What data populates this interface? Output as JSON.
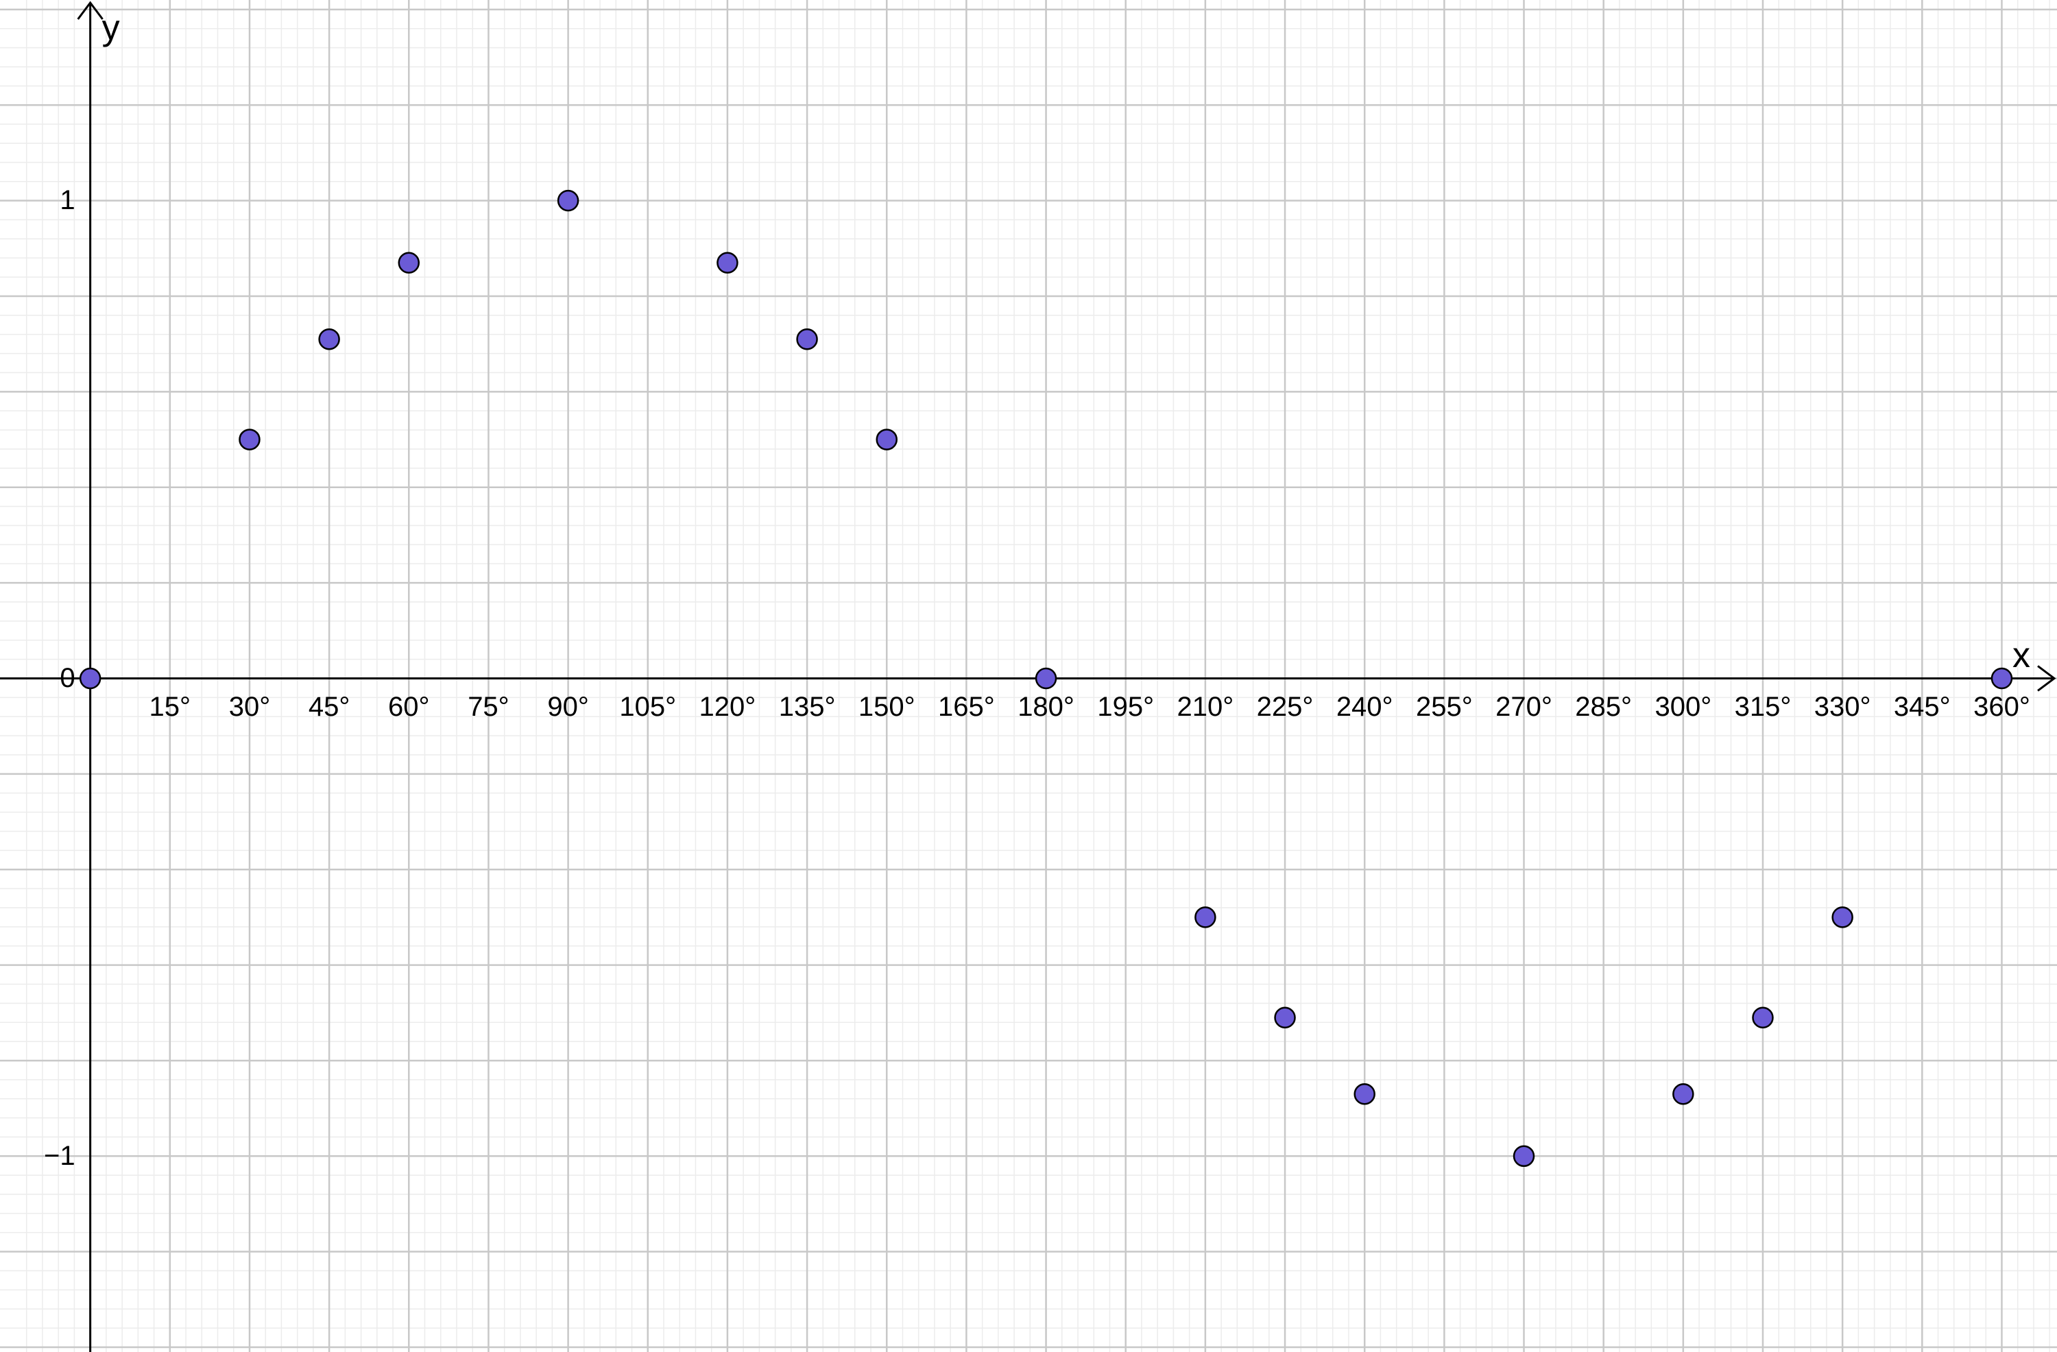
{
  "chart_data": {
    "type": "scatter",
    "x_label": "x",
    "y_label": "y",
    "x": [
      0,
      30,
      45,
      60,
      90,
      120,
      135,
      150,
      180,
      210,
      225,
      240,
      270,
      300,
      315,
      330,
      360
    ],
    "series": [
      {
        "color": "#6b5bd6",
        "values": [
          0,
          0.5,
          0.71,
          0.87,
          1,
          0.87,
          0.71,
          0.5,
          0,
          -0.5,
          -0.71,
          -0.87,
          -1,
          -0.87,
          -0.71,
          -0.5,
          0
        ]
      }
    ],
    "xlim": [
      -17,
      370.4
    ],
    "ylim": [
      -1.41,
      1.42
    ],
    "xticks": [
      {
        "value": 15,
        "label": "15°"
      },
      {
        "value": 30,
        "label": "30°"
      },
      {
        "value": 45,
        "label": "45°"
      },
      {
        "value": 60,
        "label": "60°"
      },
      {
        "value": 75,
        "label": "75°"
      },
      {
        "value": 90,
        "label": "90°"
      },
      {
        "value": 105,
        "label": "105°"
      },
      {
        "value": 120,
        "label": "120°"
      },
      {
        "value": 135,
        "label": "135°"
      },
      {
        "value": 150,
        "label": "150°"
      },
      {
        "value": 165,
        "label": "165°"
      },
      {
        "value": 180,
        "label": "180°"
      },
      {
        "value": 195,
        "label": "195°"
      },
      {
        "value": 210,
        "label": "210°"
      },
      {
        "value": 225,
        "label": "225°"
      },
      {
        "value": 240,
        "label": "240°"
      },
      {
        "value": 255,
        "label": "255°"
      },
      {
        "value": 270,
        "label": "270°"
      },
      {
        "value": 285,
        "label": "285°"
      },
      {
        "value": 300,
        "label": "300°"
      },
      {
        "value": 315,
        "label": "315°"
      },
      {
        "value": 330,
        "label": "330°"
      },
      {
        "value": 345,
        "label": "345°"
      },
      {
        "value": 360,
        "label": "360°"
      }
    ],
    "yticks": [
      {
        "value": -1,
        "label": "−1"
      },
      0,
      1
    ],
    "grid": true
  }
}
